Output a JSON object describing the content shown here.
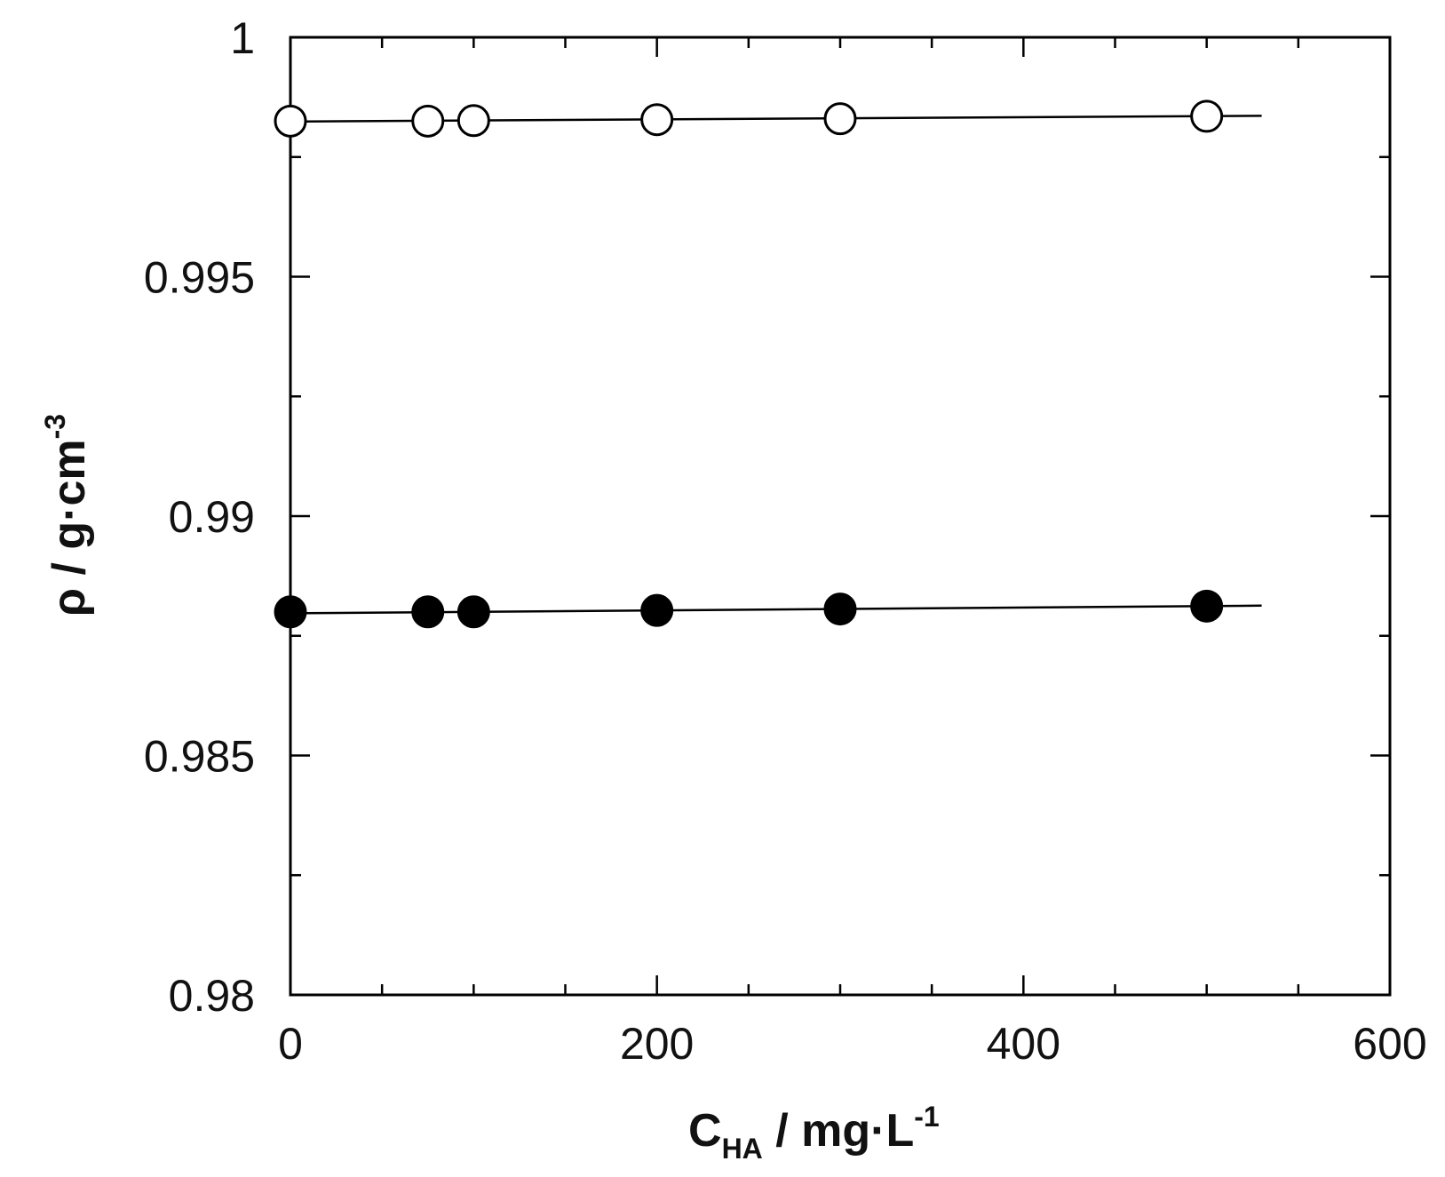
{
  "chart_data": {
    "type": "scatter",
    "title": "",
    "x_axis": {
      "range": [
        0,
        600
      ],
      "ticks": [
        0,
        200,
        400,
        600
      ],
      "tick_labels": [
        "0",
        "200",
        "400",
        "600"
      ],
      "minor_step": 50,
      "label_main": "C",
      "label_sub": "HA",
      "label_rest": "  /  mg·L",
      "label_sup": "-1"
    },
    "y_axis": {
      "range": [
        0.98,
        1.0
      ],
      "ticks": [
        0.98,
        0.985,
        0.99,
        0.995,
        1.0
      ],
      "tick_labels": [
        "0.98",
        "0.985",
        "0.99",
        "0.995",
        "1"
      ],
      "minor_step": 0.0025,
      "label_main": "ρ  /  g·cm",
      "label_sup": "-3"
    },
    "series": [
      {
        "marker": "open-circle",
        "fill": "#ffffff",
        "stroke": "#000000",
        "x": [
          0,
          75,
          100,
          200,
          300,
          500
        ],
        "y": [
          0.99825,
          0.99825,
          0.99826,
          0.99828,
          0.9983,
          0.99835
        ],
        "fit_line": {
          "x": [
            0,
            530
          ],
          "y": [
            0.99824,
            0.99836
          ]
        }
      },
      {
        "marker": "filled-circle",
        "fill": "#000000",
        "stroke": "#000000",
        "x": [
          0,
          75,
          100,
          200,
          300,
          500
        ],
        "y": [
          0.988,
          0.988,
          0.988,
          0.98803,
          0.98806,
          0.98812
        ],
        "fit_line": {
          "x": [
            0,
            530
          ],
          "y": [
            0.98797,
            0.98813
          ]
        }
      }
    ],
    "grid": false,
    "legend": "none"
  }
}
